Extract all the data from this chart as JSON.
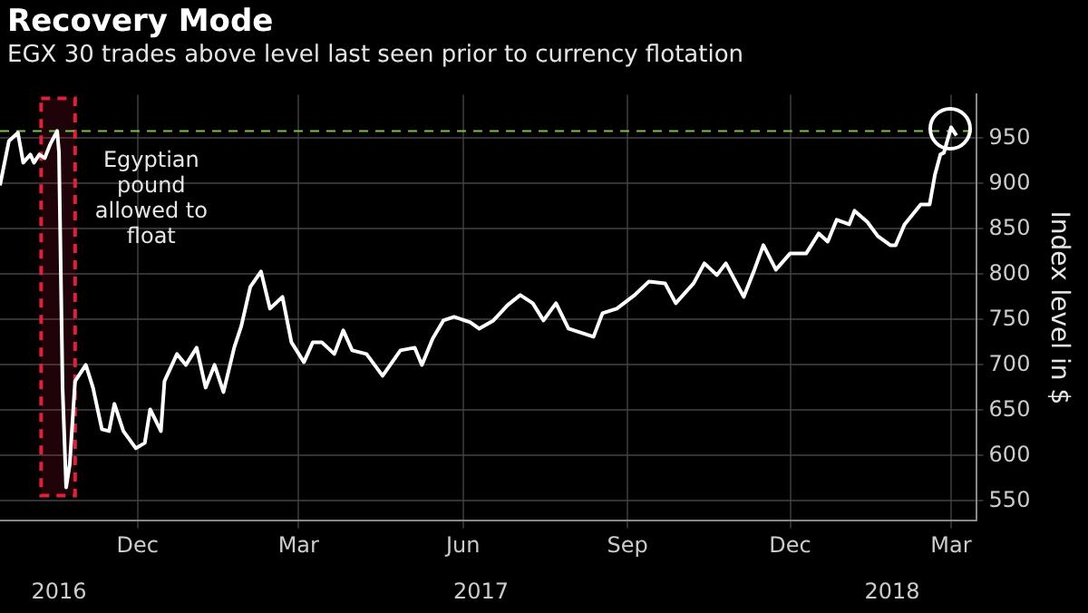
{
  "chart_data": {
    "type": "line",
    "title": "Recovery Mode",
    "subtitle": "EGX 30 trades above level last seen prior to currency flotation",
    "ylabel": "Index level in $",
    "x": [
      "2016-09-29",
      "2016-10-04",
      "2016-10-09",
      "2016-10-12",
      "2016-10-16",
      "2016-10-18",
      "2016-10-21",
      "2016-10-24",
      "2016-10-27",
      "2016-10-31",
      "2016-11-01",
      "2016-11-03",
      "2016-11-05",
      "2016-11-07",
      "2016-11-10",
      "2016-11-16",
      "2016-11-20",
      "2016-11-25",
      "2016-11-29",
      "2016-12-02",
      "2016-12-07",
      "2016-12-14",
      "2016-12-19",
      "2016-12-22",
      "2016-12-28",
      "2016-12-30",
      "2017-01-06",
      "2017-01-11",
      "2017-01-17",
      "2017-01-22",
      "2017-01-27",
      "2017-02-01",
      "2017-02-07",
      "2017-02-11",
      "2017-02-16",
      "2017-02-22",
      "2017-02-27",
      "2017-03-06",
      "2017-03-11",
      "2017-03-18",
      "2017-03-23",
      "2017-03-28",
      "2017-04-04",
      "2017-04-09",
      "2017-04-14",
      "2017-04-22",
      "2017-05-01",
      "2017-05-11",
      "2017-05-19",
      "2017-05-23",
      "2017-05-29",
      "2017-06-04",
      "2017-06-10",
      "2017-06-19",
      "2017-06-24",
      "2017-07-02",
      "2017-07-10",
      "2017-07-17",
      "2017-07-24",
      "2017-07-30",
      "2017-08-06",
      "2017-08-13",
      "2017-08-27",
      "2017-09-01",
      "2017-09-09",
      "2017-09-19",
      "2017-09-27",
      "2017-10-06",
      "2017-10-12",
      "2017-10-22",
      "2017-10-28",
      "2017-11-04",
      "2017-11-09",
      "2017-11-19",
      "2017-11-25",
      "2017-11-30",
      "2017-12-07",
      "2017-12-15",
      "2017-12-24",
      "2017-12-31",
      "2018-01-05",
      "2018-01-10",
      "2018-01-17",
      "2018-01-20",
      "2018-01-27",
      "2018-02-02",
      "2018-02-09",
      "2018-02-12",
      "2018-02-17",
      "2018-02-26",
      "2018-03-03",
      "2018-03-06",
      "2018-03-09",
      "2018-03-11",
      "2018-03-15",
      "2018-03-18"
    ],
    "series": [
      {
        "color": "#ffffff",
        "values": [
          898,
          947,
          956,
          923,
          932,
          923,
          932,
          928,
          943,
          958,
          934,
          675,
          565,
          590,
          682,
          700,
          675,
          629,
          627,
          657,
          627,
          608,
          614,
          651,
          627,
          682,
          712,
          700,
          719,
          675,
          700,
          670,
          719,
          743,
          786,
          803,
          762,
          775,
          725,
          703,
          725,
          725,
          712,
          738,
          716,
          712,
          688,
          716,
          719,
          700,
          729,
          749,
          753,
          747,
          740,
          749,
          766,
          777,
          768,
          749,
          768,
          740,
          731,
          757,
          762,
          777,
          792,
          790,
          768,
          790,
          812,
          799,
          812,
          775,
          805,
          832,
          805,
          823,
          823,
          845,
          836,
          860,
          855,
          870,
          858,
          842,
          832,
          832,
          855,
          877,
          877,
          910,
          932,
          934,
          962,
          953
        ]
      }
    ],
    "xlim": [
      "2016-09-29",
      "2018-03-29"
    ],
    "xticks": [
      {
        "value": "2016-12-15",
        "label": "Dec"
      },
      {
        "value": "2017-03-15",
        "label": "Mar"
      },
      {
        "value": "2017-06-15",
        "label": "Jun"
      },
      {
        "value": "2017-09-15",
        "label": "Sep"
      },
      {
        "value": "2017-12-15",
        "label": "Dec"
      },
      {
        "value": "2018-03-15",
        "label": "Mar"
      }
    ],
    "x2lim": [
      "2016-09-29",
      "2018-03-29"
    ],
    "x2ticks": [
      {
        "value": "2016-11-01",
        "label": "2016"
      },
      {
        "value": "2017-06-25",
        "label": "2017"
      },
      {
        "value": "2018-02-10",
        "label": "2018"
      }
    ],
    "ylim": [
      528,
      998
    ],
    "yticks": [
      550,
      600,
      650,
      700,
      750,
      800,
      850,
      900,
      950
    ],
    "ref_lines": [
      {
        "axis": "y",
        "value": 958,
        "color": "#7cc243",
        "line_style": "dashed"
      }
    ],
    "bands": [
      {
        "axis": "x",
        "from": "2016-10-22",
        "to": "2016-11-10",
        "label": "Egyptian pound allowed to float",
        "color": "#e0203a"
      }
    ],
    "grid": true,
    "legend": false,
    "marker": "none",
    "line_style": "solid"
  }
}
